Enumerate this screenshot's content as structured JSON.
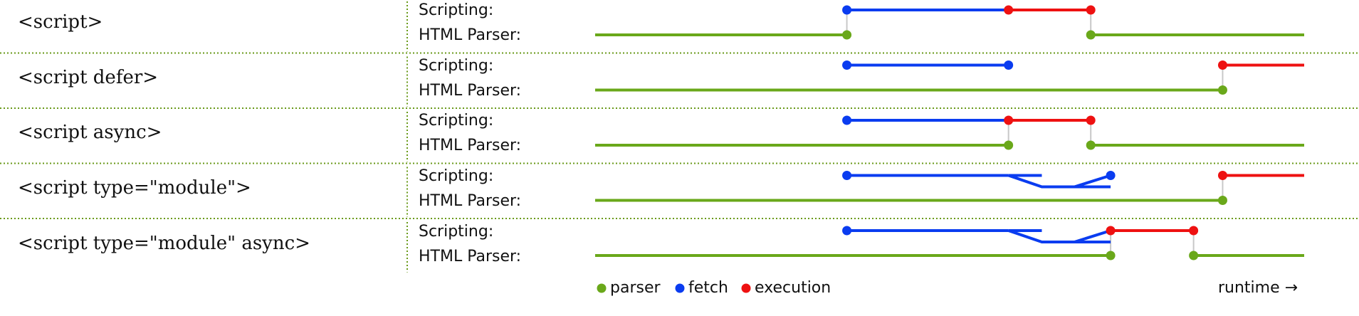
{
  "colors": {
    "parser": "#6aa81a",
    "fetch": "#0a3cf0",
    "execution": "#ee1111",
    "separator": "#6a9a1a",
    "connector": "#c8c8c8"
  },
  "lane_labels": {
    "scripting": "Scripting:",
    "parser": "HTML Parser:"
  },
  "rows": [
    {
      "label": "<script>",
      "parser": [
        [
          0,
          355
        ],
        [
          699,
          1000
        ]
      ],
      "fetch": [
        [
          355,
          583
        ]
      ],
      "execution": [
        [
          583,
          699
        ]
      ],
      "connectors": [
        355,
        699
      ],
      "module": false
    },
    {
      "label": "<script defer>",
      "parser": [
        [
          0,
          885
        ]
      ],
      "fetch": [
        [
          355,
          583
        ]
      ],
      "execution": [
        [
          885,
          1000
        ]
      ],
      "connectors": [
        885
      ],
      "module": false
    },
    {
      "label": "<script async>",
      "parser": [
        [
          0,
          583
        ],
        [
          699,
          1000
        ]
      ],
      "fetch": [
        [
          355,
          583
        ]
      ],
      "execution": [
        [
          583,
          699
        ]
      ],
      "connectors": [
        583,
        699
      ],
      "module": false
    },
    {
      "label": "<script type=\"module\">",
      "parser": [
        [
          0,
          885
        ]
      ],
      "fetch": [
        [
          355,
          727
        ]
      ],
      "execution": [
        [
          885,
          1000
        ]
      ],
      "connectors": [
        885
      ],
      "module": true
    },
    {
      "label": "<script type=\"module\" async>",
      "parser": [
        [
          0,
          727
        ],
        [
          844,
          1000
        ]
      ],
      "fetch": [
        [
          355,
          727
        ]
      ],
      "execution": [
        [
          727,
          844
        ]
      ],
      "connectors": [
        727,
        844
      ],
      "module": true
    }
  ],
  "legend": {
    "parser": "parser",
    "fetch": "fetch",
    "execution": "execution",
    "runtime": "runtime →"
  }
}
